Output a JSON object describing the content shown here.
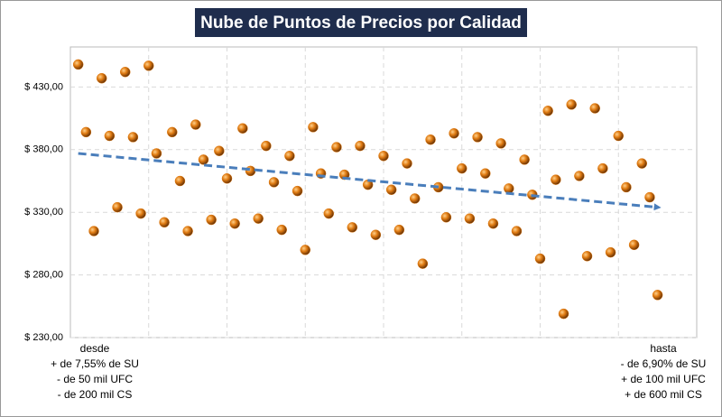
{
  "chart_data": {
    "type": "scatter",
    "title": "Nube de Puntos de Precios por Calidad",
    "series": [
      {
        "color": "#e07b12",
        "x": [
          1,
          2,
          3,
          4,
          5,
          6,
          7,
          8,
          9,
          10,
          11,
          12,
          13,
          14,
          15,
          16,
          17,
          18,
          19,
          20,
          21,
          22,
          23,
          24,
          25,
          26,
          27,
          28,
          29,
          30,
          31,
          32,
          33,
          34,
          35,
          36,
          37,
          38,
          39,
          40,
          41,
          42,
          43,
          44,
          45,
          46,
          47,
          48,
          49,
          50,
          51,
          52,
          53,
          54,
          55,
          56,
          57,
          58,
          59,
          60,
          61,
          62,
          63,
          64,
          65,
          66,
          67,
          68,
          69,
          70,
          71,
          72,
          73,
          74,
          75
        ],
        "values": [
          448,
          394,
          315,
          437,
          391,
          334,
          442,
          390,
          329,
          447,
          377,
          322,
          394,
          355,
          315,
          400,
          372,
          324,
          379,
          357,
          321,
          397,
          363,
          325,
          383,
          354,
          316,
          375,
          347,
          300,
          398,
          361,
          329,
          382,
          360,
          318,
          383,
          352,
          312,
          375,
          348,
          316,
          369,
          341,
          289,
          388,
          350,
          326,
          393,
          365,
          325,
          390,
          361,
          321,
          385,
          349,
          315,
          372,
          344,
          293,
          411,
          356,
          249,
          416,
          359,
          295,
          413,
          365,
          298,
          391,
          350,
          304,
          369,
          342,
          264
        ]
      }
    ],
    "trendline": {
      "color": "#4a7ebb",
      "x": [
        1,
        75
      ],
      "values": [
        377,
        334
      ]
    },
    "xlim": [
      0,
      80
    ],
    "x_gridlines": [
      10,
      20,
      30,
      40,
      50,
      60,
      70
    ],
    "ylim": [
      230,
      462
    ],
    "yticks": [
      {
        "value": 230,
        "label": "$ 230,00"
      },
      {
        "value": 280,
        "label": "$ 280,00"
      },
      {
        "value": 330,
        "label": "$ 330,00"
      },
      {
        "value": 380,
        "label": "$ 380,00"
      },
      {
        "value": 430,
        "label": "$ 430,00"
      }
    ],
    "grid": true,
    "annotations": [
      {
        "position": "left",
        "lines": [
          "desde",
          "+ de 7,55% de SU",
          "- de 50 mil UFC",
          "- de 200 mil CS"
        ]
      },
      {
        "position": "right",
        "lines": [
          "hasta",
          "- de 6,90% de SU",
          "+ de 100 mil UFC",
          "+ de 600 mil CS"
        ]
      }
    ]
  }
}
